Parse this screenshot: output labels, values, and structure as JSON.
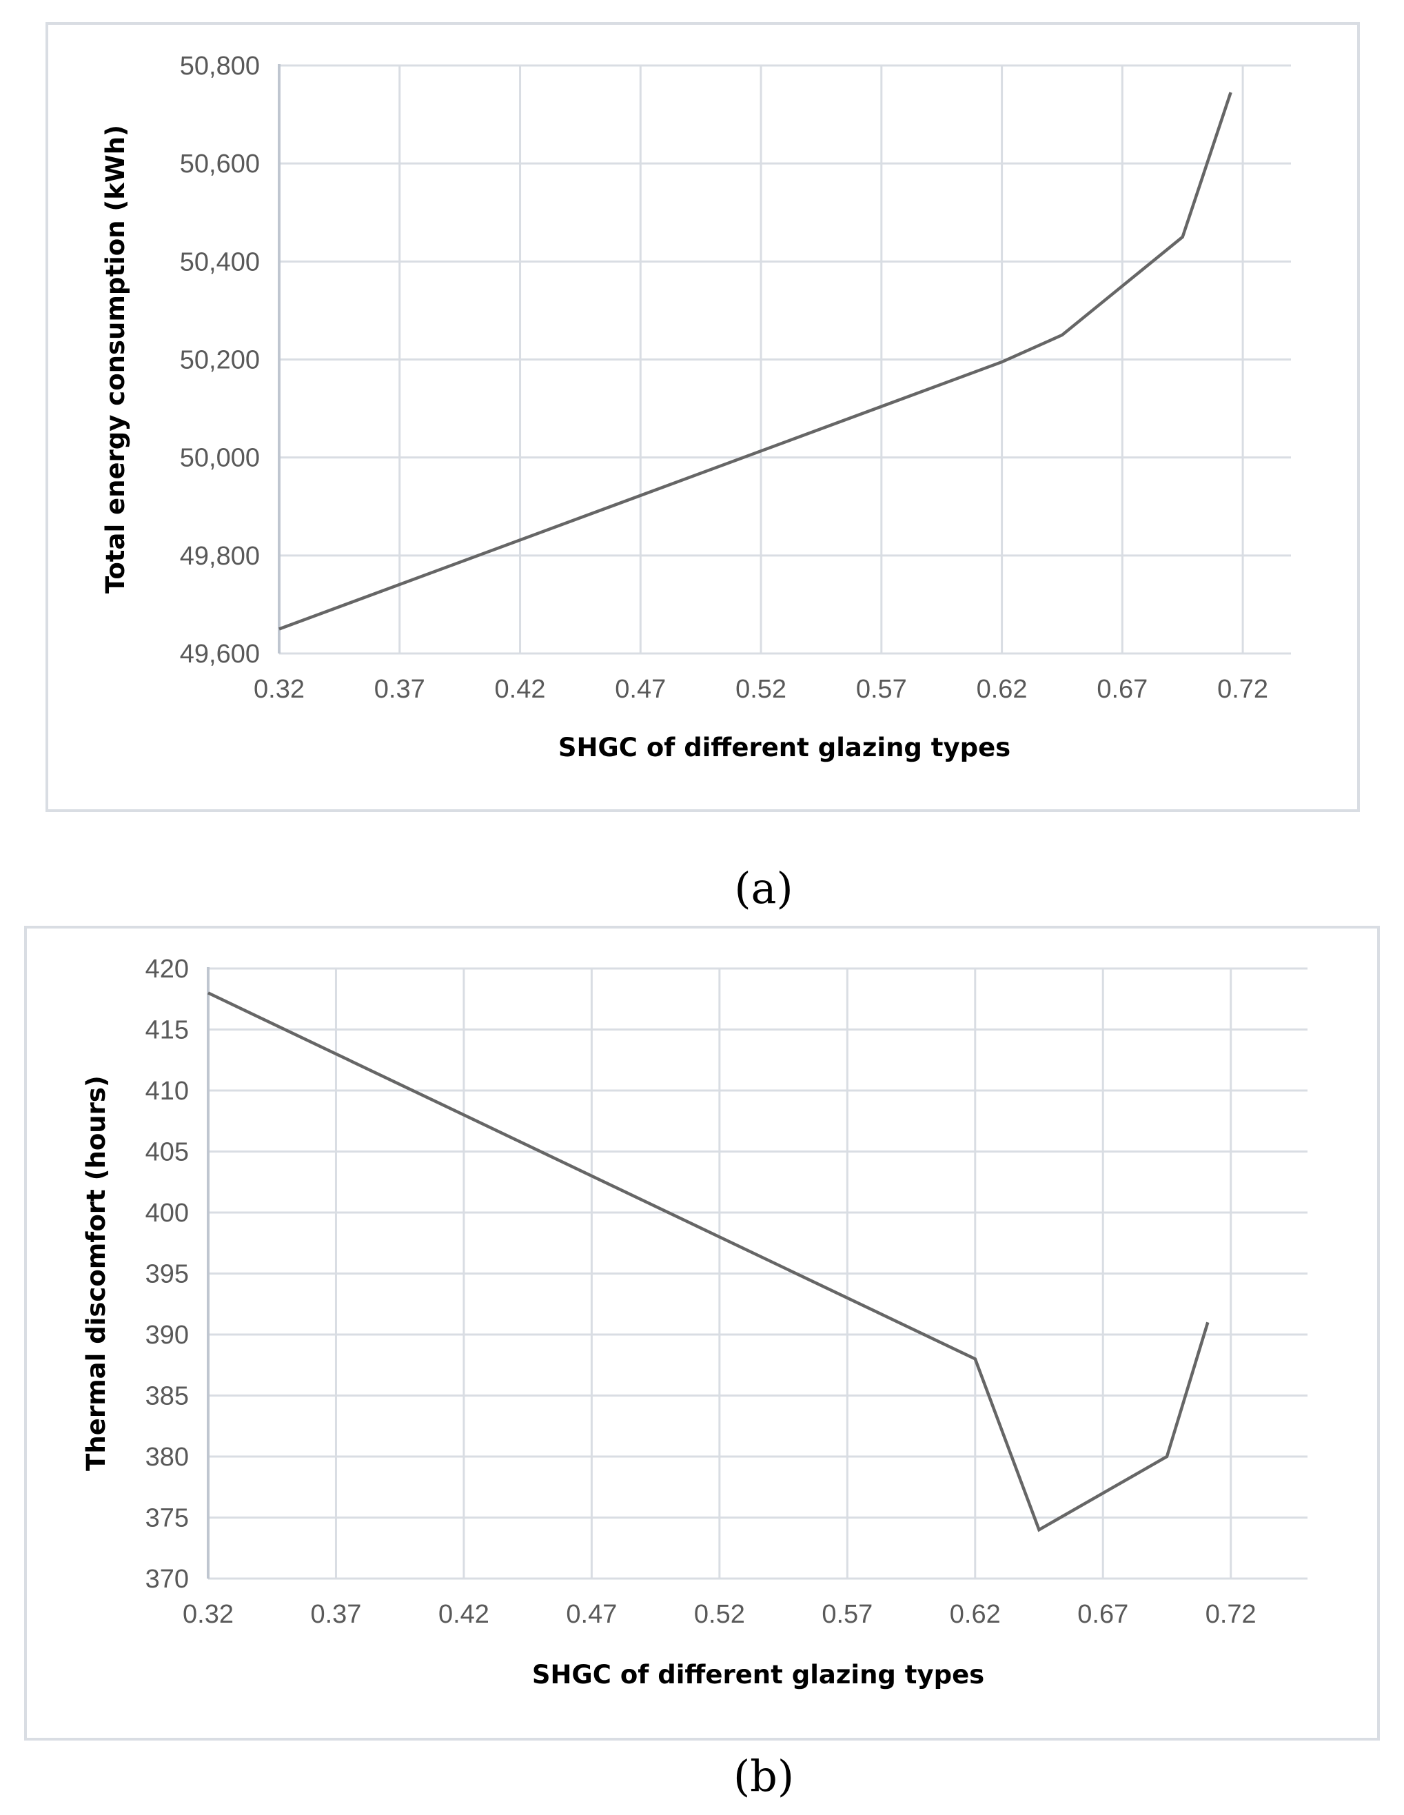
{
  "chart_data": [
    {
      "type": "line",
      "panel_label": "a",
      "xlabel": "SHGC of different glazing types",
      "ylabel": "Total energy consumption (kWh)",
      "xlim": [
        0.32,
        0.74
      ],
      "ylim": [
        49600,
        50800
      ],
      "x_ticks": [
        "0.32",
        "0.37",
        "0.42",
        "0.47",
        "0.52",
        "0.57",
        "0.62",
        "0.67",
        "0.72"
      ],
      "y_ticks": [
        "49,600",
        "49,800",
        "50,000",
        "50,200",
        "50,400",
        "50,600",
        "50,800"
      ],
      "grid": true,
      "line_color": "#666666",
      "series": [
        {
          "name": "Total energy consumption",
          "x": [
            0.32,
            0.62,
            0.645,
            0.695,
            0.715
          ],
          "y": [
            49650,
            50195,
            50250,
            50450,
            50745
          ]
        }
      ]
    },
    {
      "type": "line",
      "panel_label": "b",
      "xlabel": "SHGC of different glazing types",
      "ylabel": "Thermal discomfort (hours)",
      "xlim": [
        0.32,
        0.75
      ],
      "ylim": [
        370,
        420
      ],
      "x_ticks": [
        "0.32",
        "0.37",
        "0.42",
        "0.47",
        "0.52",
        "0.57",
        "0.62",
        "0.67",
        "0.72"
      ],
      "y_ticks": [
        "370",
        "375",
        "380",
        "385",
        "390",
        "395",
        "400",
        "405",
        "410",
        "415",
        "420"
      ],
      "grid": true,
      "line_color": "#666666",
      "series": [
        {
          "name": "Thermal discomfort",
          "x": [
            0.32,
            0.62,
            0.645,
            0.695,
            0.711
          ],
          "y": [
            418,
            388,
            374,
            380,
            391
          ]
        }
      ]
    }
  ],
  "captions": {
    "a": "(a)",
    "b": "(b)"
  },
  "colors": {
    "grid": "#d9dde3",
    "axis": "#bfc6d0",
    "frame": "#d9dde3",
    "tick_text": "#595959"
  }
}
